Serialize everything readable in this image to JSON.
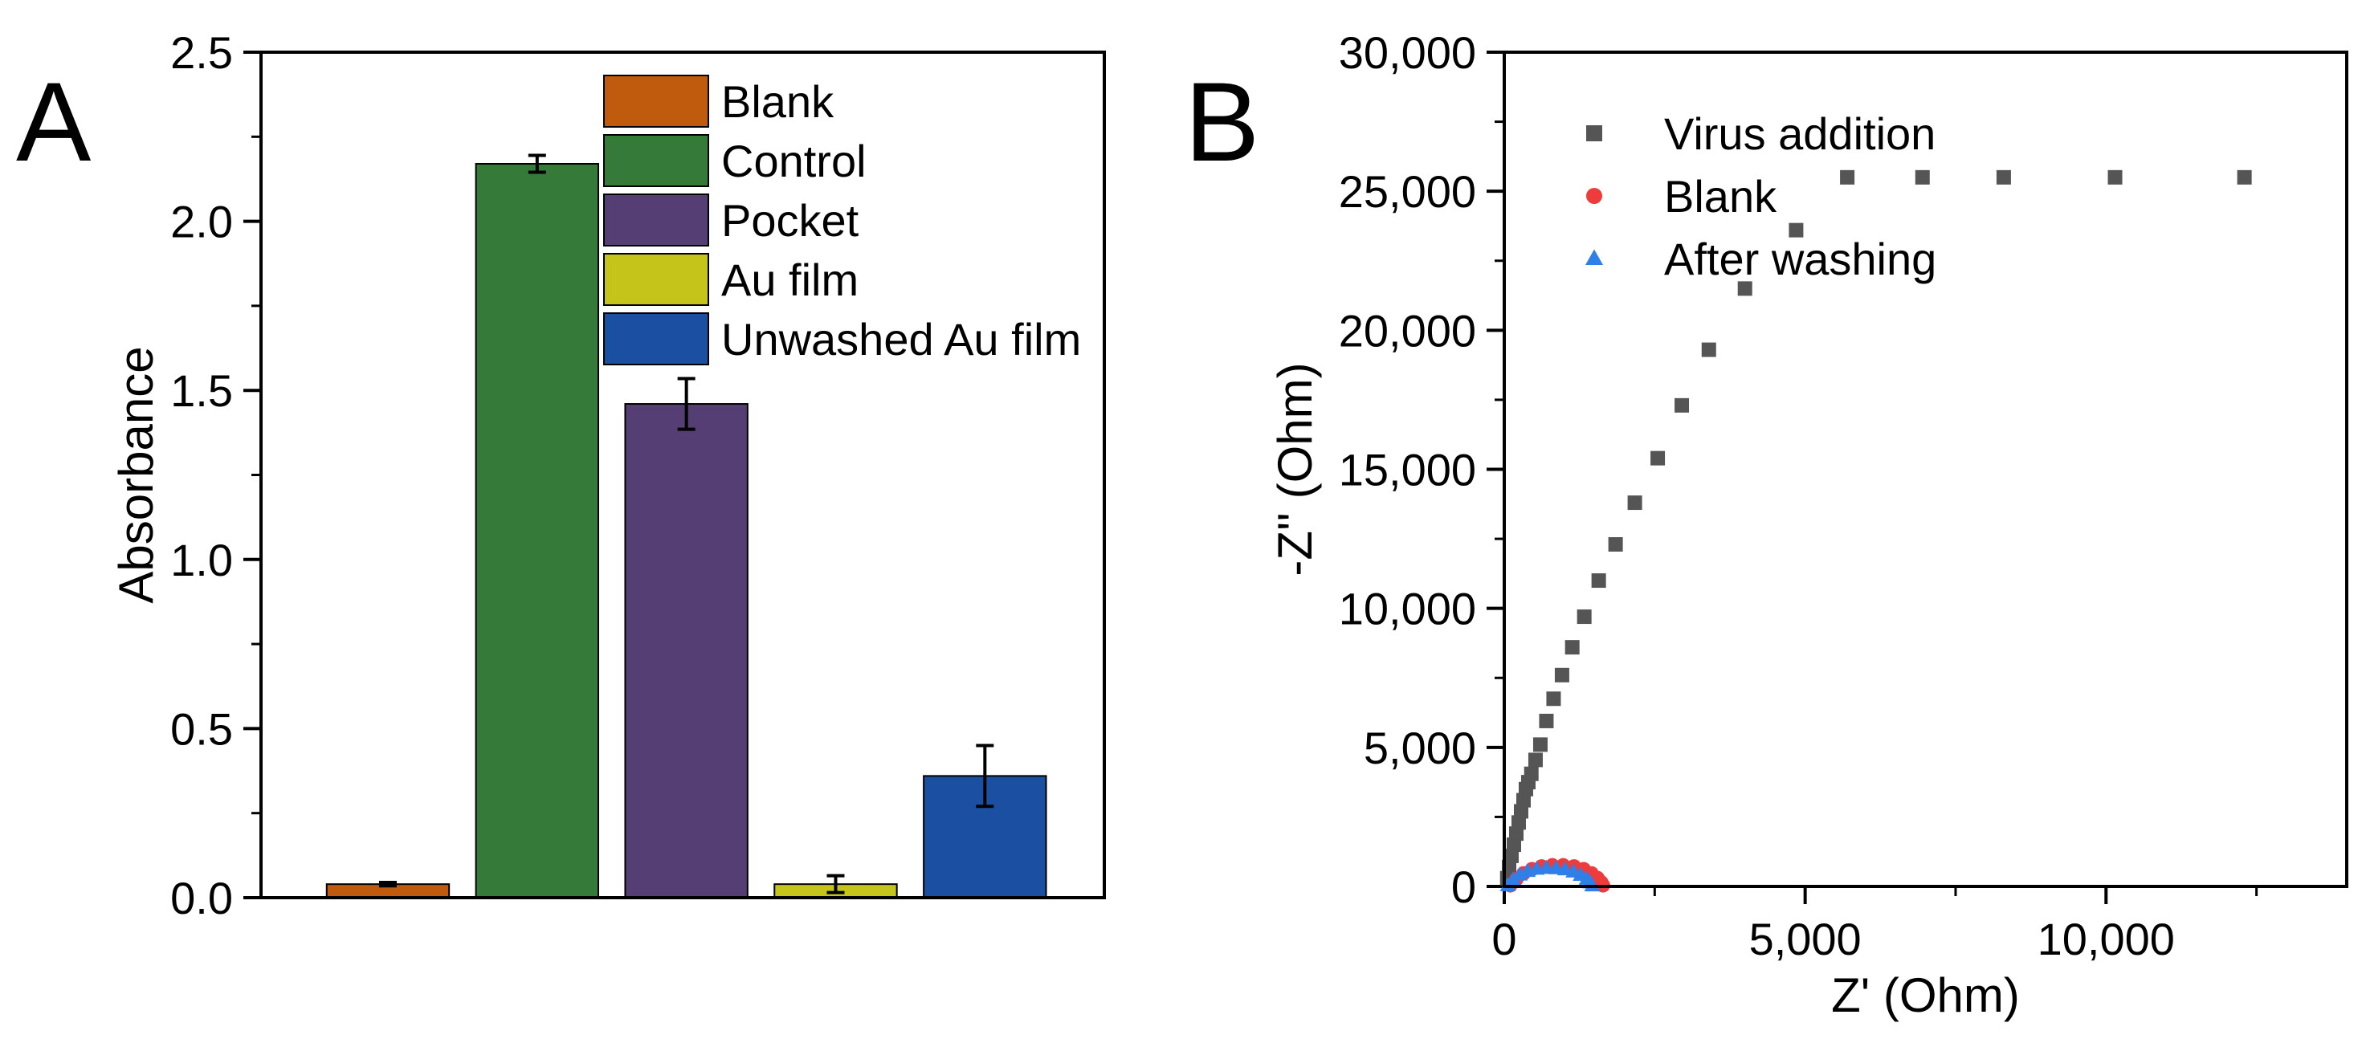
{
  "figure": {
    "panel_a_label": "A",
    "panel_b_label": "B"
  },
  "colors": {
    "blank_bar": "#c05a0c",
    "control_bar": "#357a38",
    "pocket_bar": "#553e73",
    "au_film_bar": "#c5c41a",
    "unwashed_bar": "#1b4fa2",
    "virus_marker": "#555555",
    "blank_marker": "#ee3b3b",
    "washing_marker": "#2f7fe8"
  },
  "chart_data": [
    {
      "type": "bar",
      "panel": "A",
      "ylabel": "Absorbance",
      "xlabel": "",
      "ylim": [
        0,
        2.5
      ],
      "yticks": [
        "0.0",
        "0.5",
        "1.0",
        "1.5",
        "2.0",
        "2.5"
      ],
      "categories": [
        "Blank",
        "Control",
        "Pocket",
        "Au film",
        "Unwashed Au film"
      ],
      "values": [
        0.04,
        2.17,
        1.46,
        0.04,
        0.36
      ],
      "errors": [
        0.005,
        0.025,
        0.075,
        0.025,
        0.09
      ],
      "legend": [
        "Blank",
        "Control",
        "Pocket",
        "Au film",
        "Unwashed Au film"
      ],
      "legend_position": "top-right",
      "grid": false
    },
    {
      "type": "scatter",
      "panel": "B",
      "xlabel": "Z' (Ohm)",
      "ylabel": "-Z'' (Ohm)",
      "xlim": [
        0,
        14000
      ],
      "ylim": [
        0,
        30000
      ],
      "xticks": [
        "0",
        "5,000",
        "10,000"
      ],
      "yticks": [
        "0",
        "5,000",
        "10,000",
        "15,000",
        "20,000",
        "25,000",
        "30,000"
      ],
      "legend_position": "top-left",
      "grid": false,
      "series": [
        {
          "name": "Virus addition",
          "marker": "square",
          "x": [
            50,
            80,
            120,
            160,
            200,
            240,
            280,
            320,
            360,
            400,
            450,
            520,
            600,
            700,
            820,
            960,
            1130,
            1330,
            1570,
            1850,
            2170,
            2550,
            2950,
            3400,
            4000,
            4850,
            5700,
            6950,
            8300,
            10150,
            12300
          ],
          "y": [
            300,
            700,
            1100,
            1500,
            1900,
            2300,
            2700,
            3100,
            3500,
            3750,
            4050,
            4550,
            5100,
            5950,
            6750,
            7600,
            8600,
            9700,
            11000,
            12300,
            13800,
            15400,
            17300,
            19300,
            21500,
            23600,
            25500,
            25500,
            25500,
            25500,
            25500
          ]
        },
        {
          "name": "Blank",
          "marker": "circle",
          "x": [
            100,
            200,
            320,
            460,
            620,
            800,
            980,
            1160,
            1320,
            1450,
            1550,
            1610,
            1640
          ],
          "y": [
            40,
            260,
            470,
            620,
            720,
            760,
            760,
            720,
            620,
            470,
            300,
            150,
            40
          ]
        },
        {
          "name": "After washing",
          "marker": "triangle",
          "x": [
            60,
            150,
            260,
            390,
            540,
            700,
            860,
            1010,
            1150,
            1270,
            1370,
            1430,
            1460
          ],
          "y": [
            40,
            240,
            420,
            550,
            630,
            660,
            650,
            610,
            530,
            410,
            270,
            140,
            30
          ]
        }
      ]
    }
  ]
}
